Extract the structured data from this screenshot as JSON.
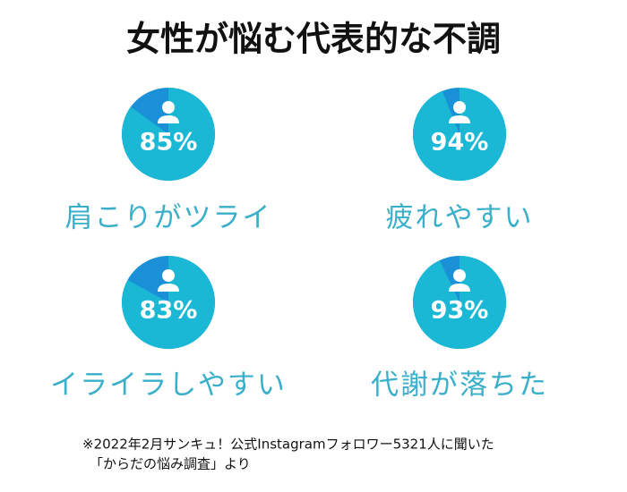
{
  "title": "女性が悩む代表的な不調",
  "note": [
    "※2022年2月サンキュ！公式Instagramフォロワー5321人に聞いた",
    "「からだの悩み調査」より"
  ],
  "chart_data": [
    {
      "type": "pie",
      "title": "肩こりがツライ",
      "values": [
        85
      ],
      "value_labels": [
        "85%"
      ],
      "color": "#1bb8d6",
      "rest_color": "#1a90d6"
    },
    {
      "type": "pie",
      "title": "疲れやすい",
      "values": [
        94
      ],
      "value_labels": [
        "94%"
      ],
      "color": "#1bb8d6",
      "rest_color": "#1a90d6"
    },
    {
      "type": "pie",
      "title": "イライラしやすい",
      "values": [
        83
      ],
      "value_labels": [
        "83%"
      ],
      "color": "#1bb8d6",
      "rest_color": "#1a90d6"
    },
    {
      "type": "pie",
      "title": "代謝が落ちた",
      "values": [
        93
      ],
      "value_labels": [
        "93%"
      ],
      "color": "#1bb8d6",
      "rest_color": "#1a90d6"
    }
  ]
}
